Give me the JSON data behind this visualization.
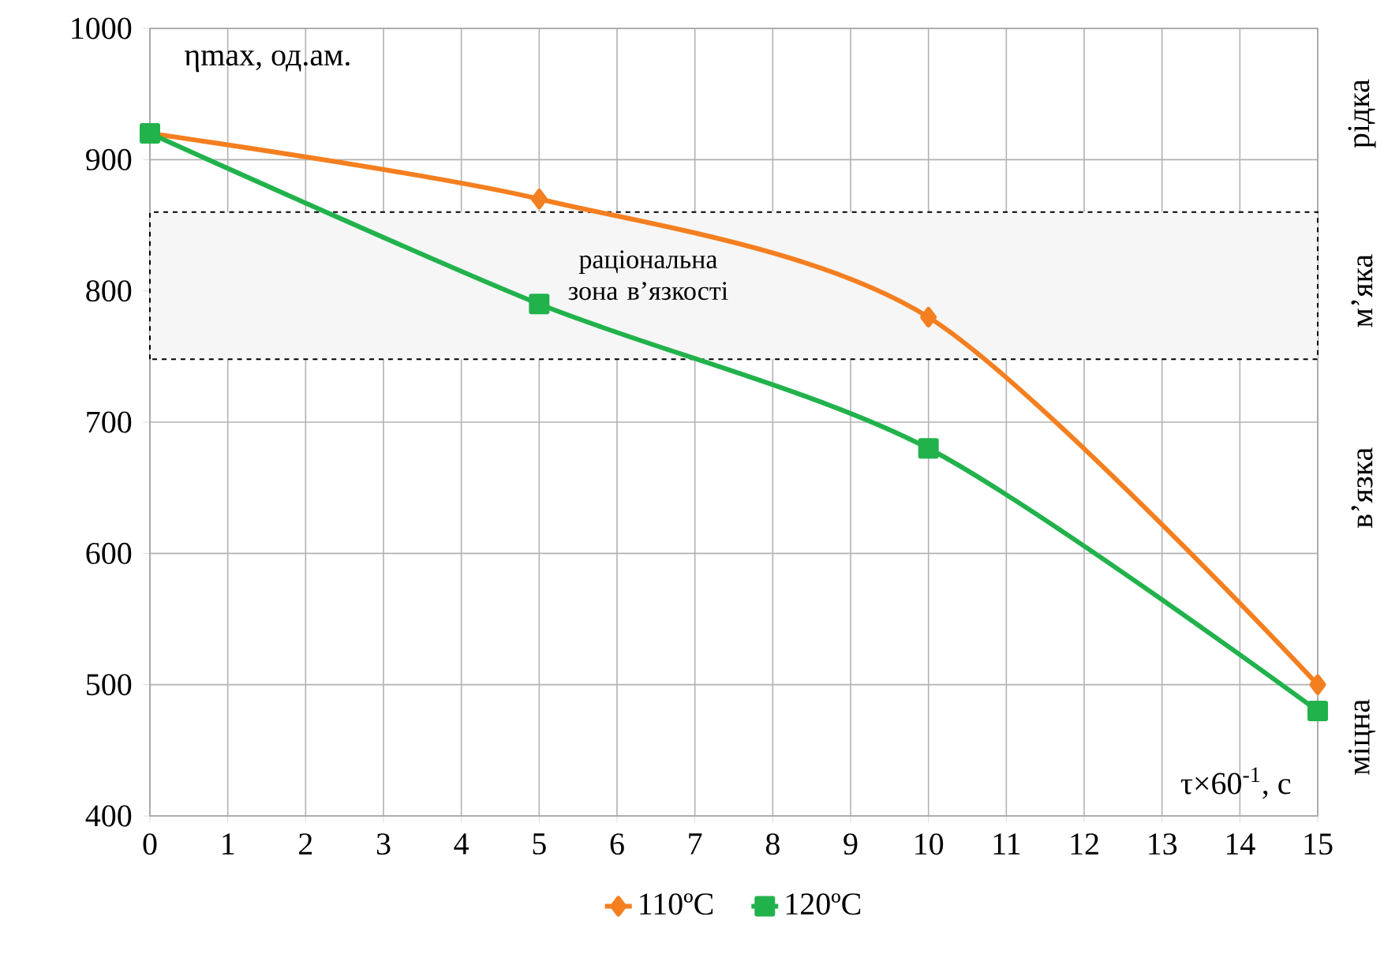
{
  "chart_data": {
    "type": "line",
    "xlabel": "τ×60$^{-1}$, с",
    "ylabel": "ηmax, од.ам.",
    "x": [
      0,
      5,
      10,
      15
    ],
    "series": [
      {
        "name": "110ºC",
        "color": "#f47f20",
        "marker": "diamond",
        "values": [
          920,
          870,
          780,
          500
        ]
      },
      {
        "name": "120ºC",
        "color": "#22b24c",
        "marker": "square",
        "values": [
          920,
          790,
          680,
          480
        ]
      }
    ],
    "xlim": [
      0,
      15
    ],
    "xticks": [
      0,
      1,
      2,
      3,
      4,
      5,
      6,
      7,
      8,
      9,
      10,
      11,
      12,
      13,
      14,
      15
    ],
    "ylim": [
      400,
      1000
    ],
    "yticks": [
      400,
      500,
      600,
      700,
      800,
      900,
      1000
    ],
    "grid": true,
    "legend": "bottom",
    "line_style": "solid",
    "bands": [
      {
        "axis": "y",
        "from": 748,
        "to": 860,
        "label": "раціональна зона в’язкості",
        "color": "#f6f6f6"
      }
    ],
    "annotations": [
      "рідка",
      "м’яка",
      "в’язка",
      "міцна"
    ]
  }
}
